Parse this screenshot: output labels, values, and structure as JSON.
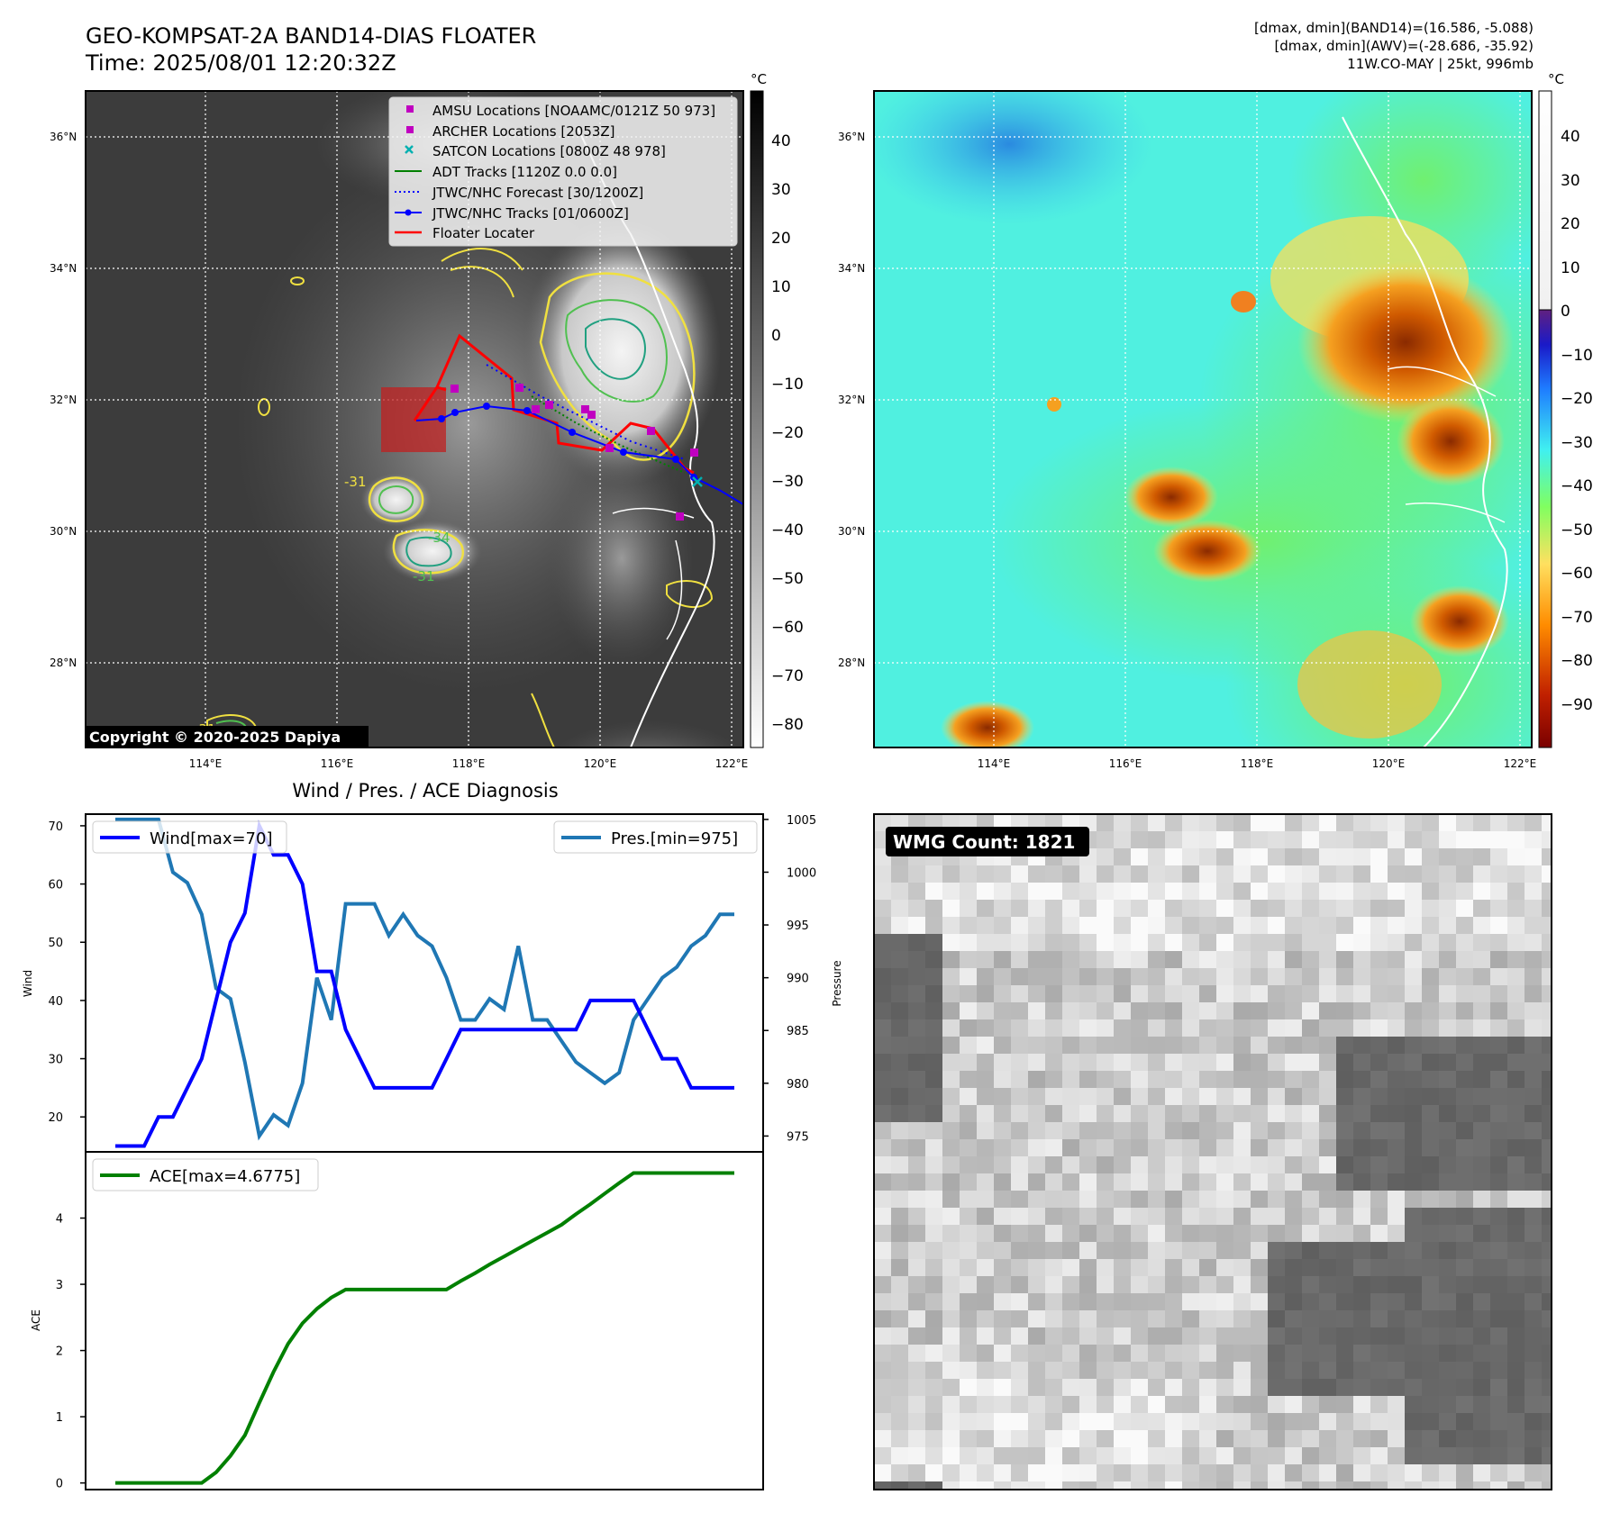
{
  "header": {
    "title_line1": "GEO-KOMPSAT-2A BAND14-DIAS FLOATER",
    "title_line2": "Time: 2025/08/01 12:20:32Z",
    "info_line1": "[dmax, dmin](BAND14)=(16.586, -5.088)",
    "info_line2": "[dmax, dmin](AWV)=(-28.686, -35.92)",
    "info_line3": "11W.CO-MAY | 25kt, 996mb"
  },
  "maps": {
    "lat_labels": [
      "36°N",
      "34°N",
      "32°N",
      "30°N",
      "28°N"
    ],
    "lon_labels": [
      "114°E",
      "116°E",
      "118°E",
      "120°E",
      "122°E"
    ],
    "copyright": "Copyright © 2020-2025 Dapiya",
    "contour_labels": [
      "-31",
      "-34",
      "-31",
      "-31"
    ],
    "legend": [
      {
        "label": "AMSU Locations [NOAAMC/0121Z 50 973]",
        "marker": "square",
        "color": "#c000c0"
      },
      {
        "label": "ARCHER Locations [2053Z]",
        "marker": "square",
        "color": "#c000c0"
      },
      {
        "label": "SATCON Locations [0800Z 48 978]",
        "marker": "x",
        "color": "#00b0b0"
      },
      {
        "label": "ADT Tracks [1120Z 0.0 0.0]",
        "marker": "line",
        "color": "#008000"
      },
      {
        "label": "JTWC/NHC Forecast [30/1200Z]",
        "marker": "dotted",
        "color": "#0000ff"
      },
      {
        "label": "JTWC/NHC Tracks [01/0600Z]",
        "marker": "line-dot",
        "color": "#0000ff"
      },
      {
        "label": "Floater Locater",
        "marker": "line",
        "color": "#ff0000"
      }
    ],
    "colorbar_gray": {
      "unit": "°C",
      "ticks": [
        "40",
        "30",
        "20",
        "10",
        "0",
        "−10",
        "−20",
        "−30",
        "−40",
        "−50",
        "−60",
        "−70",
        "−80"
      ]
    },
    "colorbar_color": {
      "unit": "°C",
      "ticks": [
        "40",
        "30",
        "20",
        "10",
        "0",
        "−10",
        "−20",
        "−30",
        "−40",
        "−50",
        "−60",
        "−70",
        "−80",
        "−90"
      ]
    },
    "wmg_count_label": "WMG Count: 1821"
  },
  "chart_data": [
    {
      "type": "line",
      "title": "Wind / Pres. / ACE Diagnosis",
      "ylabel": "Wind",
      "ylabel_right": "Pressure",
      "ylim": [
        14,
        72
      ],
      "ylim_right": [
        973.5,
        1005.5
      ],
      "y_ticks": [
        70,
        60,
        50,
        40,
        30,
        20
      ],
      "y_ticks_right": [
        1005,
        1000,
        995,
        990,
        985,
        980,
        975
      ],
      "grid": false,
      "x_count": 44,
      "series": [
        {
          "name": "Wind[max=70]",
          "axis": "left",
          "color": "#0000ff",
          "values": [
            15,
            15,
            15,
            20,
            20,
            25,
            30,
            40,
            50,
            55,
            70,
            65,
            65,
            60,
            45,
            45,
            35,
            30,
            25,
            25,
            25,
            25,
            25,
            30,
            35,
            35,
            35,
            35,
            35,
            35,
            35,
            35,
            35,
            40,
            40,
            40,
            40,
            35,
            30,
            30,
            25,
            25,
            25,
            25
          ]
        },
        {
          "name": "Pres.[min=975]",
          "axis": "right",
          "color": "#1f77b4",
          "values": [
            1005,
            1005,
            1005,
            1005,
            1000,
            999,
            996,
            989,
            988,
            982,
            975,
            977,
            976,
            980,
            990,
            986,
            997,
            997,
            997,
            994,
            996,
            994,
            993,
            990,
            986,
            986,
            988,
            987,
            993,
            986,
            986,
            984,
            982,
            981,
            980,
            981,
            986,
            988,
            990,
            991,
            993,
            994,
            996,
            996
          ]
        }
      ],
      "legend_left": "top-left",
      "legend_right": "top-right"
    },
    {
      "type": "line",
      "ylabel": "ACE",
      "ylim": [
        -0.1,
        5.0
      ],
      "y_ticks": [
        4,
        3,
        2,
        1,
        0
      ],
      "grid": false,
      "x_count": 44,
      "series": [
        {
          "name": "ACE[max=4.6775]",
          "color": "#008000",
          "values": [
            0,
            0,
            0,
            0,
            0,
            0,
            0,
            0.16,
            0.41,
            0.72,
            1.21,
            1.68,
            2.1,
            2.41,
            2.63,
            2.8,
            2.92,
            2.92,
            2.92,
            2.92,
            2.92,
            2.92,
            2.92,
            2.92,
            3.05,
            3.17,
            3.3,
            3.42,
            3.54,
            3.66,
            3.78,
            3.9,
            4.06,
            4.21,
            4.37,
            4.53,
            4.68,
            4.68,
            4.68,
            4.68,
            4.68,
            4.68,
            4.68,
            4.68
          ]
        }
      ],
      "legend": "top-left"
    }
  ]
}
